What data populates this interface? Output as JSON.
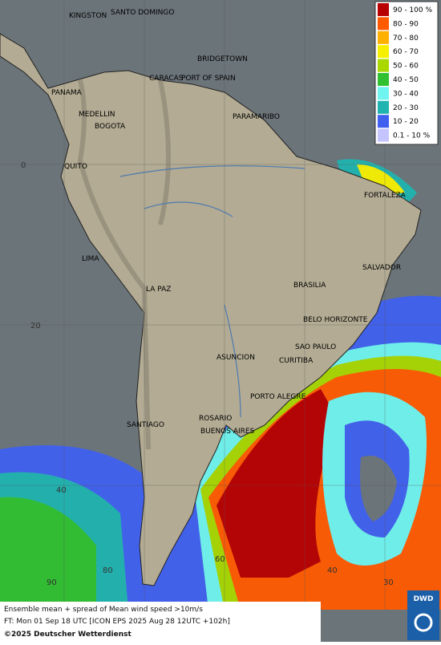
{
  "map": {
    "legend": [
      {
        "label": "90 - 100 %",
        "color": "#b80000"
      },
      {
        "label": "80 - 90",
        "color": "#ff5a00"
      },
      {
        "label": "70 - 80",
        "color": "#ffb000"
      },
      {
        "label": "60 - 70",
        "color": "#f6f000"
      },
      {
        "label": "50 - 60",
        "color": "#a8d800"
      },
      {
        "label": "40 - 50",
        "color": "#30c030"
      },
      {
        "label": "30 - 40",
        "color": "#70f4f0"
      },
      {
        "label": "20 - 30",
        "color": "#20b4b0"
      },
      {
        "label": "10 - 20",
        "color": "#4060f0"
      },
      {
        "label": "0.1 - 10 %",
        "color": "#c4c4ff"
      }
    ],
    "cities": [
      "KINGSTON",
      "SANTO DOMINGO",
      "BRIDGETOWN",
      "CARACAS",
      "PORT OF SPAIN",
      "PANAMA",
      "MEDELLIN",
      "BOGOTA",
      "PARAMARIBO",
      "QUITO",
      "FORTALEZA",
      "LIMA",
      "SALVADOR",
      "BRASILIA",
      "LA PAZ",
      "BELO HORIZONTE",
      "SAO PAULO",
      "ASUNCION",
      "CURITIBA",
      "PORTO ALEGRE",
      "ROSARIO",
      "BUENOS AIRES",
      "SANTIAGO"
    ],
    "grid_labels": [
      "0",
      "20",
      "40",
      "60",
      "80",
      "90",
      "40",
      "30"
    ],
    "footer": {
      "line1": "Ensemble mean + spread of Mean wind speed >10m/s",
      "line2": "FT: Mon 01 Sep 18 UTC [ICON EPS 2025 Aug 28 12UTC +102h]",
      "copyright": "©2025 Deutscher Wetterdienst"
    },
    "logo": "DWD"
  }
}
